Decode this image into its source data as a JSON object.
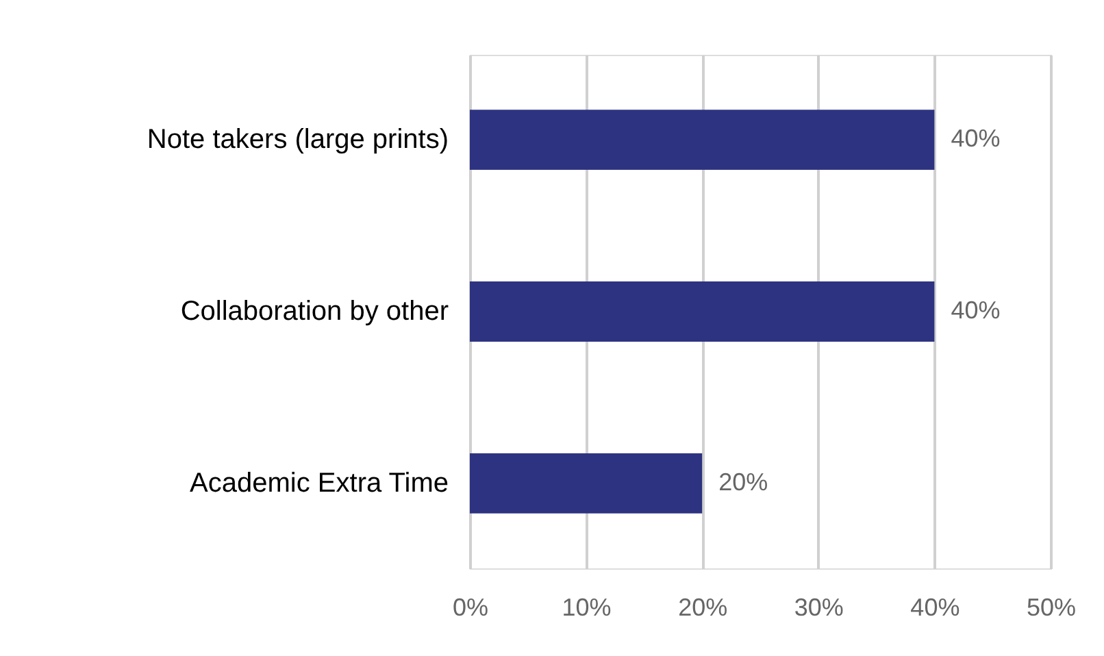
{
  "chart_data": {
    "type": "bar",
    "orientation": "horizontal",
    "categories": [
      "Note takers (large prints)",
      "Collaboration by other",
      "Academic Extra Time"
    ],
    "values": [
      40,
      40,
      20
    ],
    "color": "#2e3381",
    "value_labels": [
      "40%",
      "40%",
      "20%"
    ],
    "xlim": [
      0,
      50
    ],
    "xticks": [
      {
        "value": 0,
        "label": "0%"
      },
      {
        "value": 10,
        "label": "10%"
      },
      {
        "value": 20,
        "label": "20%"
      },
      {
        "value": 30,
        "label": "30%"
      },
      {
        "value": 40,
        "label": "40%"
      },
      {
        "value": 50,
        "label": "50%"
      }
    ],
    "grid": "x"
  }
}
